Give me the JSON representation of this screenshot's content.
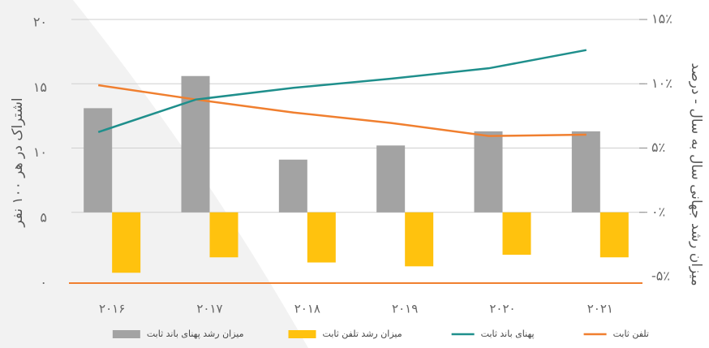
{
  "chart_data": {
    "type": "bar",
    "ylabel": "اشتراک در هر ۱۰۰ نفر",
    "y2label": "میزان رشد جهانی سال به سال - درصد",
    "categories": [
      "۲۰۱۶",
      "۲۰۱۷",
      "۲۰۱۸",
      "۲۰۱۹",
      "۲۰۲۰",
      "۲۰۲۱"
    ],
    "ylim": [
      0,
      20
    ],
    "yticks": [
      {
        "value": 0,
        "label": "۰"
      },
      {
        "value": 5,
        "label": "۵"
      },
      {
        "value": 10,
        "label": "۱۰"
      },
      {
        "value": 15,
        "label": "۱۵"
      },
      {
        "value": 20,
        "label": "۲۰"
      }
    ],
    "y2lim": [
      -5,
      15
    ],
    "y2ticks": [
      {
        "value": -5,
        "label": "-۵٪"
      },
      {
        "value": 0,
        "label": "۰٪"
      },
      {
        "value": 5,
        "label": "۵٪"
      },
      {
        "value": 10,
        "label": "۱۰٪"
      },
      {
        "value": 15,
        "label": "۱۵٪"
      }
    ],
    "grid": true,
    "series": [
      {
        "name": "تلفن ثابت",
        "type": "line",
        "axis": "y",
        "color": "#f07f2f",
        "values": [
          15.2,
          14.1,
          13.1,
          12.3,
          11.3,
          11.4
        ]
      },
      {
        "name": "پهنای باند ثابت",
        "type": "line",
        "axis": "y",
        "color": "#1f8f8c",
        "values": [
          11.6,
          14.1,
          15.0,
          15.7,
          16.5,
          17.9
        ]
      },
      {
        "name": "میزان رشد تلفن ثابت",
        "type": "bar",
        "axis": "y2",
        "color": "#ffc20e",
        "values": [
          -4.7,
          -3.5,
          -3.9,
          -4.2,
          -3.3,
          -3.5
        ]
      },
      {
        "name": "میزان رشد پهنای باند ثابت",
        "type": "bar",
        "axis": "y2",
        "color": "#a3a3a3",
        "values": [
          8.1,
          10.6,
          4.1,
          5.2,
          6.3,
          6.3
        ]
      }
    ]
  }
}
